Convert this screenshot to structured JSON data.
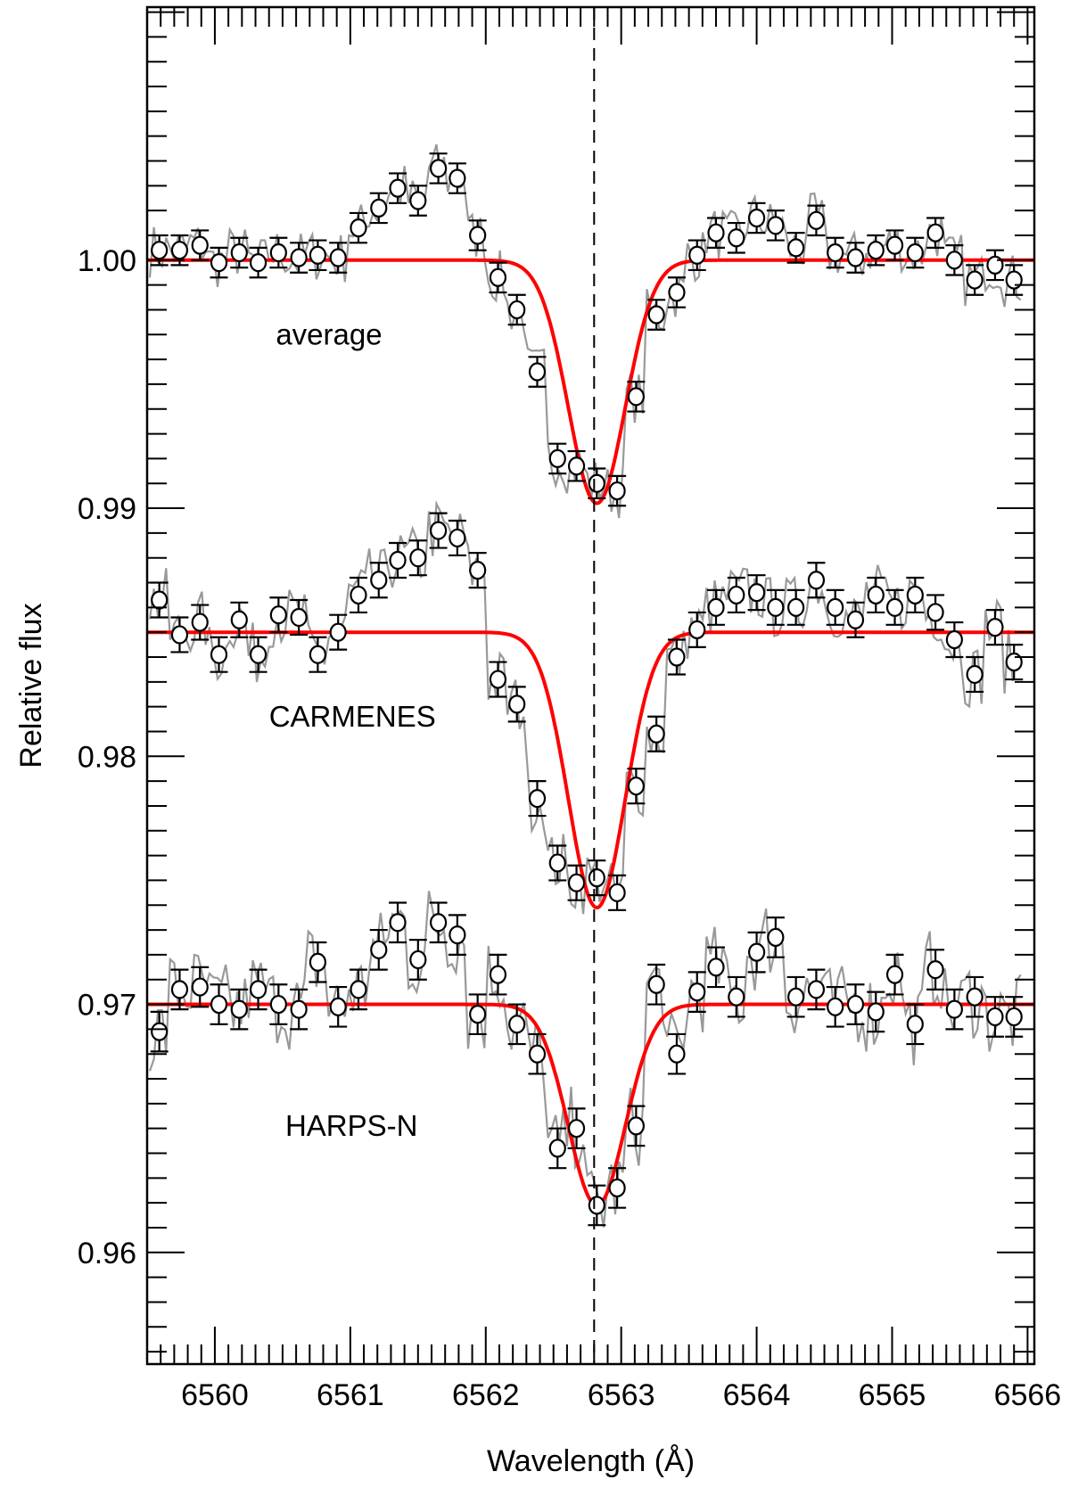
{
  "chart_data": {
    "type": "scatter",
    "xlabel": "Wavelength (Å)",
    "ylabel": "Relative flux",
    "xlim": [
      6559.5,
      6566.05
    ],
    "ylim": [
      0.9555,
      1.0102
    ],
    "x_ticks": [
      6560,
      6561,
      6562,
      6563,
      6564,
      6565,
      6566
    ],
    "y_ticks": [
      0.96,
      0.97,
      0.98,
      0.99,
      1.0
    ],
    "y_tick_labels": [
      "0.96",
      "0.97",
      "0.98",
      "0.99",
      "1.00"
    ],
    "x_minor_step": 0.1,
    "y_minor_step": 0.001,
    "reference_line": {
      "x": 6562.8,
      "style": "dashed"
    },
    "grid": false,
    "colors": {
      "model": "#ff0000",
      "spectrum": "#999999",
      "points": "#000000"
    },
    "series": [
      {
        "name": "average",
        "label_position": {
          "x": 6560.45,
          "y": 0.9966
        },
        "continuum": 1.0,
        "model": {
          "center": 6562.82,
          "depth": 0.0098,
          "sigma": 0.21
        },
        "points": [
          [
            6559.59,
            1.0004,
            0.0006
          ],
          [
            6559.74,
            1.0004,
            0.0006
          ],
          [
            6559.89,
            1.0006,
            0.0006
          ],
          [
            6560.03,
            0.9999,
            0.0006
          ],
          [
            6560.18,
            1.0003,
            0.0006
          ],
          [
            6560.32,
            0.9999,
            0.0006
          ],
          [
            6560.47,
            1.0003,
            0.0006
          ],
          [
            6560.62,
            1.0001,
            0.0006
          ],
          [
            6560.76,
            1.0002,
            0.0006
          ],
          [
            6560.91,
            1.0001,
            0.0006
          ],
          [
            6561.06,
            1.0013,
            0.0006
          ],
          [
            6561.21,
            1.0021,
            0.0006
          ],
          [
            6561.35,
            1.0029,
            0.0006
          ],
          [
            6561.5,
            1.0024,
            0.0006
          ],
          [
            6561.65,
            1.0037,
            0.0006
          ],
          [
            6561.79,
            1.0033,
            0.0006
          ],
          [
            6561.94,
            1.001,
            0.0006
          ],
          [
            6562.09,
            0.9993,
            0.0006
          ],
          [
            6562.23,
            0.998,
            0.0006
          ],
          [
            6562.38,
            0.9955,
            0.0006
          ],
          [
            6562.53,
            0.992,
            0.0006
          ],
          [
            6562.67,
            0.9917,
            0.0006
          ],
          [
            6562.82,
            0.991,
            0.0006
          ],
          [
            6562.97,
            0.9907,
            0.0006
          ],
          [
            6563.11,
            0.9945,
            0.0006
          ],
          [
            6563.26,
            0.9978,
            0.0006
          ],
          [
            6563.41,
            0.9987,
            0.0006
          ],
          [
            6563.56,
            1.0002,
            0.0006
          ],
          [
            6563.7,
            1.0011,
            0.0006
          ],
          [
            6563.85,
            1.0009,
            0.0006
          ],
          [
            6564.0,
            1.0017,
            0.0006
          ],
          [
            6564.14,
            1.0014,
            0.0006
          ],
          [
            6564.29,
            1.0005,
            0.0006
          ],
          [
            6564.44,
            1.0016,
            0.0006
          ],
          [
            6564.58,
            1.0003,
            0.0006
          ],
          [
            6564.73,
            1.0001,
            0.0006
          ],
          [
            6564.88,
            1.0004,
            0.0006
          ],
          [
            6565.02,
            1.0006,
            0.0006
          ],
          [
            6565.17,
            1.0003,
            0.0006
          ],
          [
            6565.32,
            1.0011,
            0.0006
          ],
          [
            6565.46,
            1.0,
            0.0006
          ],
          [
            6565.61,
            0.9992,
            0.0006
          ],
          [
            6565.76,
            0.9998,
            0.0006
          ],
          [
            6565.9,
            0.9992,
            0.0006
          ]
        ]
      },
      {
        "name": "CARMENES",
        "label_position": {
          "x": 6560.4,
          "y": 0.9812
        },
        "continuum": 0.985,
        "model": {
          "center": 6562.82,
          "depth": 0.0111,
          "sigma": 0.21
        },
        "points": [
          [
            6559.59,
            0.9863,
            0.0007
          ],
          [
            6559.74,
            0.9849,
            0.0007
          ],
          [
            6559.89,
            0.9854,
            0.0007
          ],
          [
            6560.03,
            0.9841,
            0.0007
          ],
          [
            6560.18,
            0.9855,
            0.0007
          ],
          [
            6560.32,
            0.9841,
            0.0007
          ],
          [
            6560.47,
            0.9857,
            0.0007
          ],
          [
            6560.62,
            0.9856,
            0.0007
          ],
          [
            6560.76,
            0.9841,
            0.0007
          ],
          [
            6560.91,
            0.985,
            0.0007
          ],
          [
            6561.06,
            0.9865,
            0.0007
          ],
          [
            6561.21,
            0.9871,
            0.0007
          ],
          [
            6561.35,
            0.9879,
            0.0007
          ],
          [
            6561.5,
            0.988,
            0.0007
          ],
          [
            6561.65,
            0.9891,
            0.0007
          ],
          [
            6561.79,
            0.9888,
            0.0007
          ],
          [
            6561.94,
            0.9875,
            0.0007
          ],
          [
            6562.09,
            0.9831,
            0.0007
          ],
          [
            6562.23,
            0.9821,
            0.0007
          ],
          [
            6562.38,
            0.9783,
            0.0007
          ],
          [
            6562.53,
            0.9757,
            0.0007
          ],
          [
            6562.67,
            0.9749,
            0.0007
          ],
          [
            6562.82,
            0.9751,
            0.0007
          ],
          [
            6562.97,
            0.9745,
            0.0007
          ],
          [
            6563.11,
            0.9788,
            0.0007
          ],
          [
            6563.26,
            0.9809,
            0.0007
          ],
          [
            6563.41,
            0.984,
            0.0007
          ],
          [
            6563.56,
            0.9851,
            0.0007
          ],
          [
            6563.7,
            0.986,
            0.0007
          ],
          [
            6563.85,
            0.9865,
            0.0007
          ],
          [
            6564.0,
            0.9866,
            0.0007
          ],
          [
            6564.14,
            0.986,
            0.0007
          ],
          [
            6564.29,
            0.986,
            0.0007
          ],
          [
            6564.44,
            0.9871,
            0.0007
          ],
          [
            6564.58,
            0.986,
            0.0007
          ],
          [
            6564.73,
            0.9855,
            0.0007
          ],
          [
            6564.88,
            0.9865,
            0.0007
          ],
          [
            6565.02,
            0.986,
            0.0007
          ],
          [
            6565.17,
            0.9865,
            0.0007
          ],
          [
            6565.32,
            0.9858,
            0.0007
          ],
          [
            6565.46,
            0.9847,
            0.0007
          ],
          [
            6565.61,
            0.9833,
            0.0007
          ],
          [
            6565.76,
            0.9852,
            0.0007
          ],
          [
            6565.9,
            0.9838,
            0.0007
          ]
        ]
      },
      {
        "name": "HARPS-N",
        "label_position": {
          "x": 6560.52,
          "y": 0.9647
        },
        "continuum": 0.97,
        "model": {
          "center": 6562.82,
          "depth": 0.0081,
          "sigma": 0.21
        },
        "points": [
          [
            6559.59,
            0.9689,
            0.0008
          ],
          [
            6559.74,
            0.9706,
            0.0008
          ],
          [
            6559.89,
            0.9707,
            0.0008
          ],
          [
            6560.03,
            0.97,
            0.0008
          ],
          [
            6560.18,
            0.9698,
            0.0008
          ],
          [
            6560.32,
            0.9706,
            0.0008
          ],
          [
            6560.47,
            0.97,
            0.0008
          ],
          [
            6560.62,
            0.9698,
            0.0008
          ],
          [
            6560.76,
            0.9717,
            0.0008
          ],
          [
            6560.91,
            0.9699,
            0.0008
          ],
          [
            6561.06,
            0.9706,
            0.0008
          ],
          [
            6561.21,
            0.9722,
            0.0008
          ],
          [
            6561.35,
            0.9733,
            0.0008
          ],
          [
            6561.5,
            0.9718,
            0.0008
          ],
          [
            6561.65,
            0.9733,
            0.0008
          ],
          [
            6561.79,
            0.9728,
            0.0008
          ],
          [
            6561.94,
            0.9696,
            0.0008
          ],
          [
            6562.09,
            0.9712,
            0.0008
          ],
          [
            6562.23,
            0.9692,
            0.0008
          ],
          [
            6562.38,
            0.968,
            0.0008
          ],
          [
            6562.53,
            0.9642,
            0.0008
          ],
          [
            6562.67,
            0.965,
            0.0008
          ],
          [
            6562.82,
            0.9619,
            0.0008
          ],
          [
            6562.97,
            0.9626,
            0.0008
          ],
          [
            6563.11,
            0.9651,
            0.0008
          ],
          [
            6563.26,
            0.9708,
            0.0008
          ],
          [
            6563.41,
            0.968,
            0.0008
          ],
          [
            6563.56,
            0.9705,
            0.0008
          ],
          [
            6563.7,
            0.9715,
            0.0008
          ],
          [
            6563.85,
            0.9703,
            0.0008
          ],
          [
            6564.0,
            0.9721,
            0.0008
          ],
          [
            6564.14,
            0.9727,
            0.0008
          ],
          [
            6564.29,
            0.9703,
            0.0008
          ],
          [
            6564.44,
            0.9706,
            0.0008
          ],
          [
            6564.58,
            0.9699,
            0.0008
          ],
          [
            6564.73,
            0.97,
            0.0008
          ],
          [
            6564.88,
            0.9697,
            0.0008
          ],
          [
            6565.02,
            0.9712,
            0.0008
          ],
          [
            6565.17,
            0.9692,
            0.0008
          ],
          [
            6565.32,
            0.9714,
            0.0008
          ],
          [
            6565.46,
            0.9698,
            0.0008
          ],
          [
            6565.61,
            0.9703,
            0.0008
          ],
          [
            6565.76,
            0.9695,
            0.0008
          ],
          [
            6565.9,
            0.9695,
            0.0008
          ]
        ]
      }
    ]
  }
}
